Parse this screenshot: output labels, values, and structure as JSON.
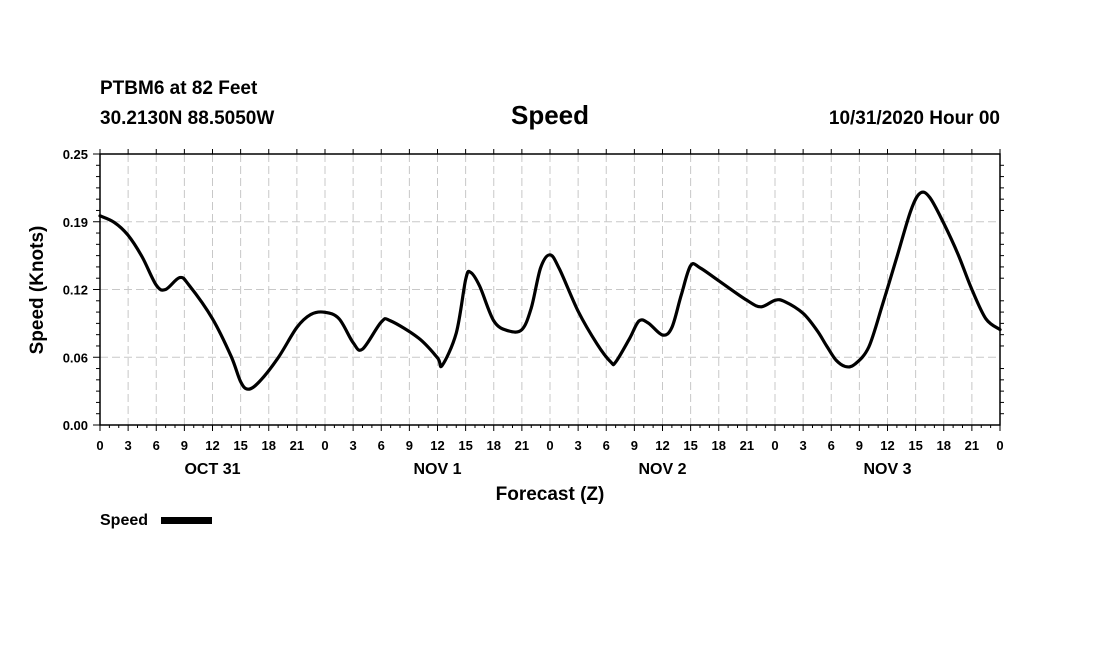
{
  "header": {
    "station": "PTBM6 at 82 Feet",
    "coords": "30.2130N 88.5050W",
    "datetime": "10/31/2020 Hour 00"
  },
  "chart_data": {
    "type": "line",
    "title": "Speed",
    "xlabel": "Forecast (Z)",
    "ylabel": "Speed (Knots)",
    "ylim": [
      0,
      0.25
    ],
    "yticks": [
      "0.00",
      "0.06",
      "0.12",
      "0.19",
      "0.25"
    ],
    "xlim": [
      0,
      96
    ],
    "xticks": [
      {
        "h": 0,
        "label": "0"
      },
      {
        "h": 3,
        "label": "3"
      },
      {
        "h": 6,
        "label": "6"
      },
      {
        "h": 9,
        "label": "9"
      },
      {
        "h": 12,
        "label": "12"
      },
      {
        "h": 15,
        "label": "15"
      },
      {
        "h": 18,
        "label": "18"
      },
      {
        "h": 21,
        "label": "21"
      },
      {
        "h": 24,
        "label": "0"
      },
      {
        "h": 27,
        "label": "3"
      },
      {
        "h": 30,
        "label": "6"
      },
      {
        "h": 33,
        "label": "9"
      },
      {
        "h": 36,
        "label": "12"
      },
      {
        "h": 39,
        "label": "15"
      },
      {
        "h": 42,
        "label": "18"
      },
      {
        "h": 45,
        "label": "21"
      },
      {
        "h": 48,
        "label": "0"
      },
      {
        "h": 51,
        "label": "3"
      },
      {
        "h": 54,
        "label": "6"
      },
      {
        "h": 57,
        "label": "9"
      },
      {
        "h": 60,
        "label": "12"
      },
      {
        "h": 63,
        "label": "15"
      },
      {
        "h": 66,
        "label": "18"
      },
      {
        "h": 69,
        "label": "21"
      },
      {
        "h": 72,
        "label": "0"
      },
      {
        "h": 75,
        "label": "3"
      },
      {
        "h": 78,
        "label": "6"
      },
      {
        "h": 81,
        "label": "9"
      },
      {
        "h": 84,
        "label": "12"
      },
      {
        "h": 87,
        "label": "15"
      },
      {
        "h": 90,
        "label": "18"
      },
      {
        "h": 93,
        "label": "21"
      },
      {
        "h": 96,
        "label": "0"
      }
    ],
    "date_labels": [
      {
        "h": 12,
        "label": "OCT 31"
      },
      {
        "h": 36,
        "label": "NOV 1"
      },
      {
        "h": 60,
        "label": "NOV 2"
      },
      {
        "h": 84,
        "label": "NOV 3"
      }
    ],
    "grid": true,
    "legend_position": "bottom-left",
    "series": [
      {
        "name": "Speed",
        "color": "#000000",
        "points": [
          [
            0,
            0.193
          ],
          [
            1.5,
            0.187
          ],
          [
            3,
            0.175
          ],
          [
            4.5,
            0.155
          ],
          [
            6,
            0.129
          ],
          [
            7,
            0.125
          ],
          [
            8.5,
            0.136
          ],
          [
            9.5,
            0.129
          ],
          [
            12,
            0.098
          ],
          [
            14,
            0.063
          ],
          [
            15,
            0.04
          ],
          [
            15.8,
            0.033
          ],
          [
            17,
            0.04
          ],
          [
            19,
            0.062
          ],
          [
            21,
            0.09
          ],
          [
            22.5,
            0.102
          ],
          [
            24,
            0.104
          ],
          [
            25.5,
            0.098
          ],
          [
            27,
            0.076
          ],
          [
            28,
            0.07
          ],
          [
            30,
            0.095
          ],
          [
            31,
            0.096
          ],
          [
            34,
            0.08
          ],
          [
            36,
            0.062
          ],
          [
            36.5,
            0.055
          ],
          [
            38,
            0.085
          ],
          [
            39,
            0.134
          ],
          [
            39.5,
            0.141
          ],
          [
            40.5,
            0.128
          ],
          [
            42,
            0.096
          ],
          [
            43.5,
            0.087
          ],
          [
            45,
            0.088
          ],
          [
            46,
            0.108
          ],
          [
            47,
            0.145
          ],
          [
            48,
            0.157
          ],
          [
            49,
            0.144
          ],
          [
            51,
            0.105
          ],
          [
            53,
            0.075
          ],
          [
            54.5,
            0.058
          ],
          [
            55,
            0.058
          ],
          [
            56.5,
            0.08
          ],
          [
            57.5,
            0.096
          ],
          [
            58.5,
            0.094
          ],
          [
            60,
            0.083
          ],
          [
            61,
            0.09
          ],
          [
            62,
            0.12
          ],
          [
            63,
            0.147
          ],
          [
            64,
            0.145
          ],
          [
            66,
            0.133
          ],
          [
            69,
            0.115
          ],
          [
            70.5,
            0.109
          ],
          [
            72,
            0.115
          ],
          [
            73,
            0.114
          ],
          [
            75,
            0.103
          ],
          [
            76.5,
            0.087
          ],
          [
            77.5,
            0.073
          ],
          [
            78.5,
            0.06
          ],
          [
            79.5,
            0.054
          ],
          [
            80.5,
            0.056
          ],
          [
            82,
            0.072
          ],
          [
            83.5,
            0.112
          ],
          [
            85,
            0.155
          ],
          [
            86.5,
            0.198
          ],
          [
            87.5,
            0.214
          ],
          [
            88.5,
            0.21
          ],
          [
            90,
            0.186
          ],
          [
            91.5,
            0.158
          ],
          [
            93,
            0.125
          ],
          [
            94.5,
            0.098
          ],
          [
            96,
            0.088
          ]
        ]
      }
    ]
  }
}
